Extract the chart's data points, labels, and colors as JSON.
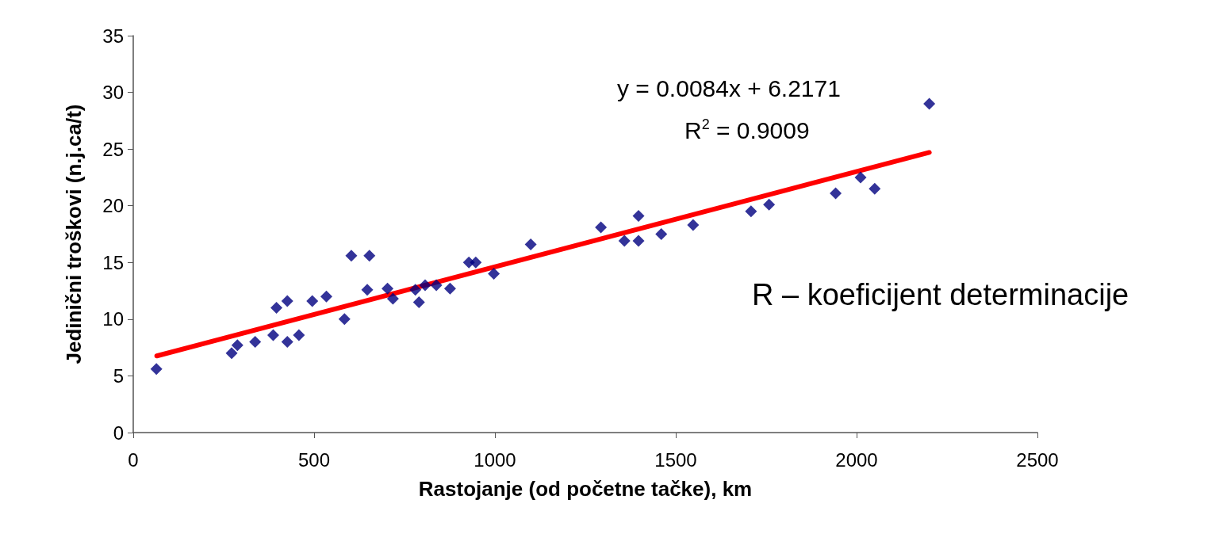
{
  "chart_data": {
    "type": "scatter",
    "xlabel": "Rastojanje (od početne tačke), km",
    "ylabel": "Jedinični troškovi (n.j.ca/t)",
    "xlim": [
      0,
      2500
    ],
    "xticks": [
      0,
      500,
      1000,
      1500,
      2000,
      2500
    ],
    "ylim": [
      0,
      35
    ],
    "yticks": [
      0,
      5,
      10,
      15,
      20,
      25,
      30,
      35
    ],
    "grid": false,
    "marker": "diamond",
    "series": [
      {
        "color": "#000080",
        "x": [
          64,
          272,
          288,
          337,
          387,
          396,
          426,
          426,
          458,
          495,
          534,
          584,
          603,
          653,
          647,
          703,
          718,
          780,
          790,
          807,
          838,
          876,
          928,
          947,
          997,
          1099,
          1293,
          1358,
          1397,
          1397,
          1460,
          1548,
          1708,
          1758,
          1942,
          2011,
          2050,
          2201
        ],
        "values": [
          5.6,
          7.0,
          7.7,
          8.0,
          8.6,
          11.0,
          8.0,
          11.6,
          8.6,
          11.6,
          12.0,
          10.0,
          15.6,
          15.6,
          12.6,
          12.7,
          11.8,
          12.6,
          11.5,
          13.0,
          13.0,
          12.7,
          15.0,
          15.0,
          14.0,
          16.6,
          18.1,
          16.9,
          19.1,
          16.9,
          17.5,
          18.3,
          19.5,
          20.1,
          21.1,
          22.5,
          21.5,
          29.0
        ]
      },
      {
        "type": "line",
        "color": "#ff0000",
        "x": [
          65,
          2201
        ],
        "values": [
          6.76,
          24.7
        ],
        "marker": "none"
      }
    ],
    "annotations": [
      "y = 0.0084x + 6.2171",
      "R$^{2}$ = 0.9009",
      "R – koeficijent determinacije"
    ]
  }
}
